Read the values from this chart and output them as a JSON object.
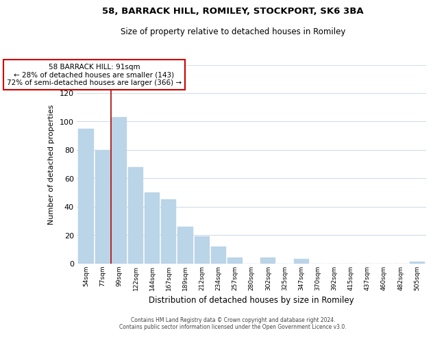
{
  "title": "58, BARRACK HILL, ROMILEY, STOCKPORT, SK6 3BA",
  "subtitle": "Size of property relative to detached houses in Romiley",
  "xlabel": "Distribution of detached houses by size in Romiley",
  "ylabel": "Number of detached properties",
  "bar_color": "#bad4e8",
  "categories": [
    "54sqm",
    "77sqm",
    "99sqm",
    "122sqm",
    "144sqm",
    "167sqm",
    "189sqm",
    "212sqm",
    "234sqm",
    "257sqm",
    "280sqm",
    "302sqm",
    "325sqm",
    "347sqm",
    "370sqm",
    "392sqm",
    "415sqm",
    "437sqm",
    "460sqm",
    "482sqm",
    "505sqm"
  ],
  "values": [
    95,
    80,
    103,
    68,
    50,
    45,
    26,
    19,
    12,
    4,
    0,
    4,
    0,
    3,
    0,
    0,
    0,
    0,
    0,
    0,
    1
  ],
  "ylim": [
    0,
    140
  ],
  "yticks": [
    0,
    20,
    40,
    60,
    80,
    100,
    120,
    140
  ],
  "vline_color": "#aa0000",
  "annotation_title": "58 BARRACK HILL: 91sqm",
  "annotation_line1": "← 28% of detached houses are smaller (143)",
  "annotation_line2": "72% of semi-detached houses are larger (366) →",
  "annotation_box_edge": "#cc0000",
  "footer_line1": "Contains HM Land Registry data © Crown copyright and database right 2024.",
  "footer_line2": "Contains public sector information licensed under the Open Government Licence v3.0.",
  "background_color": "white",
  "grid_color": "#d0dde8"
}
